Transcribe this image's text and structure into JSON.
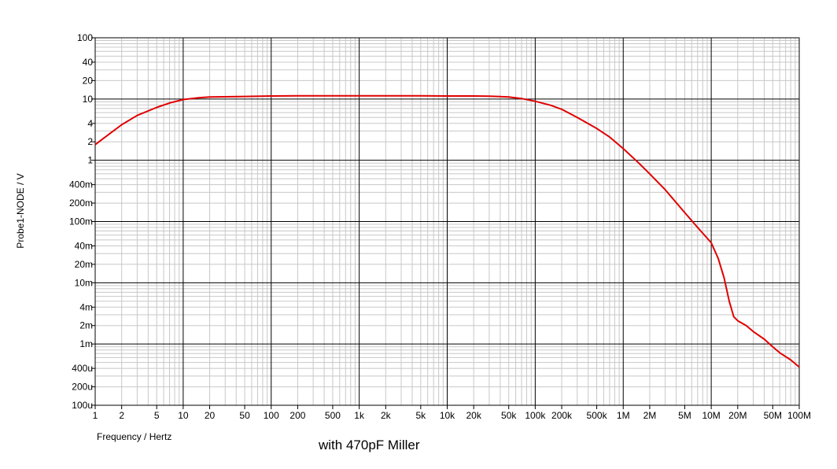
{
  "chart_data": {
    "type": "line",
    "title": "",
    "caption": "with 470pF Miller",
    "xlabel": "Frequency / Hertz",
    "ylabel": "Probe1-NODE / V",
    "xscale": "log",
    "yscale": "log",
    "xlim": [
      1,
      100000000
    ],
    "ylim": [
      0.0001,
      100
    ],
    "grid": true,
    "x_tick_labels": [
      "1",
      "2",
      "5",
      "10",
      "20",
      "50",
      "100",
      "200",
      "500",
      "1k",
      "2k",
      "5k",
      "10k",
      "20k",
      "50k",
      "100k",
      "200k",
      "500k",
      "1M",
      "2M",
      "5M",
      "10M",
      "20M",
      "50M",
      "100M"
    ],
    "x_tick_values": [
      1,
      2,
      5,
      10,
      20,
      50,
      100,
      200,
      500,
      1000,
      2000,
      5000,
      10000,
      20000,
      50000,
      100000,
      200000,
      500000,
      1000000,
      2000000,
      5000000,
      10000000,
      20000000,
      50000000,
      100000000
    ],
    "y_tick_labels": [
      "100",
      "40",
      "20",
      "10",
      "4",
      "2",
      "1",
      "400m",
      "200m",
      "100m",
      "40m",
      "20m",
      "10m",
      "4m",
      "2m",
      "1m",
      "400u",
      "200u",
      "100u"
    ],
    "y_tick_values": [
      100,
      40,
      20,
      10,
      4,
      2,
      1,
      0.4,
      0.2,
      0.1,
      0.04,
      0.02,
      0.01,
      0.004,
      0.002,
      0.001,
      0.0004,
      0.0002,
      0.0001
    ],
    "series": [
      {
        "color": "#e00000",
        "x": [
          1,
          1.5,
          2,
          3,
          5,
          7,
          10,
          15,
          20,
          50,
          100,
          200,
          500,
          1000,
          2000,
          5000,
          10000,
          20000,
          30000,
          50000,
          70000,
          100000,
          150000,
          200000,
          300000,
          500000,
          700000,
          1000000,
          1500000,
          2000000,
          3000000,
          5000000,
          7000000,
          10000000,
          12000000,
          14000000,
          16000000,
          18000000,
          20000000,
          25000000,
          30000000,
          40000000,
          50000000,
          60000000,
          80000000,
          100000000
        ],
        "y": [
          1.8,
          2.8,
          3.8,
          5.4,
          7.3,
          8.6,
          9.8,
          10.5,
          10.8,
          11,
          11.2,
          11.3,
          11.3,
          11.3,
          11.3,
          11.3,
          11.2,
          11.2,
          11.1,
          10.8,
          10.2,
          9.2,
          7.9,
          6.8,
          5.0,
          3.3,
          2.4,
          1.55,
          0.9,
          0.6,
          0.33,
          0.14,
          0.08,
          0.045,
          0.025,
          0.012,
          0.005,
          0.0028,
          0.0024,
          0.002,
          0.0016,
          0.0012,
          0.0009,
          0.00072,
          0.00055,
          0.00042
        ]
      }
    ]
  }
}
